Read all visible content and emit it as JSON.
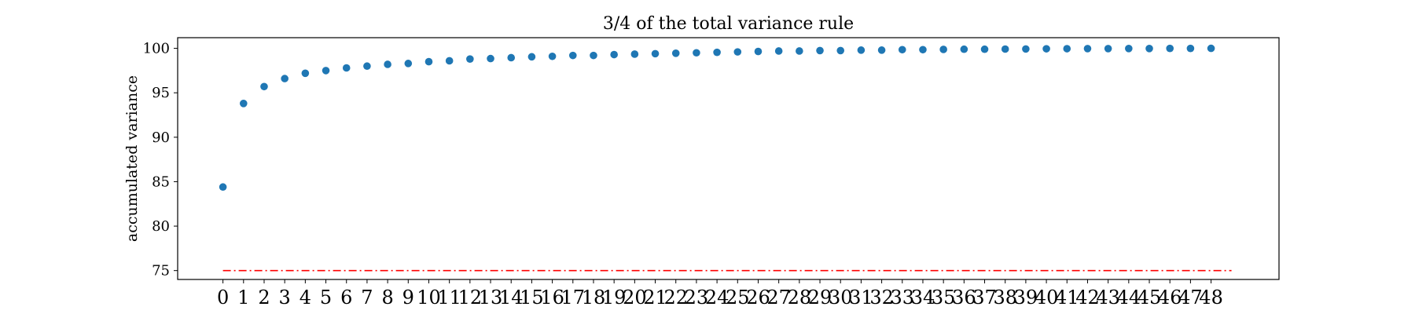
{
  "chart_data": {
    "type": "scatter",
    "title": "3/4 of the total variance rule",
    "xlabel": "",
    "ylabel": "accumulated variance",
    "x": [
      0,
      1,
      2,
      3,
      4,
      5,
      6,
      7,
      8,
      9,
      10,
      11,
      12,
      13,
      14,
      15,
      16,
      17,
      18,
      19,
      20,
      21,
      22,
      23,
      24,
      25,
      26,
      27,
      28,
      29,
      30,
      31,
      32,
      33,
      34,
      35,
      36,
      37,
      38,
      39,
      40,
      41,
      42,
      43,
      44,
      45,
      46,
      47,
      48
    ],
    "series": [
      {
        "values": [
          84.4,
          93.8,
          95.7,
          96.6,
          97.2,
          97.5,
          97.8,
          98.0,
          98.2,
          98.3,
          98.5,
          98.6,
          98.8,
          98.85,
          98.95,
          99.05,
          99.1,
          99.2,
          99.2,
          99.3,
          99.35,
          99.4,
          99.45,
          99.5,
          99.55,
          99.6,
          99.65,
          99.7,
          99.7,
          99.75,
          99.75,
          99.8,
          99.8,
          99.85,
          99.85,
          99.88,
          99.9,
          99.9,
          99.92,
          99.93,
          99.95,
          99.96,
          99.97,
          99.97,
          99.98,
          99.98,
          99.99,
          99.99,
          100.0
        ],
        "color": "#1f77b4"
      }
    ],
    "reference_line": {
      "y": 75,
      "x_range": [
        0,
        48
      ],
      "color": "#ff0000",
      "style": "dash-dot"
    },
    "ylim": [
      74,
      101.2
    ],
    "xlim": [
      -2.2,
      51.3
    ],
    "yticks": [
      75,
      80,
      85,
      90,
      95,
      100
    ],
    "xticks": [
      0,
      1,
      2,
      3,
      4,
      5,
      6,
      7,
      8,
      9,
      10,
      11,
      12,
      13,
      14,
      15,
      16,
      17,
      18,
      19,
      20,
      21,
      22,
      23,
      24,
      25,
      26,
      27,
      28,
      29,
      30,
      31,
      32,
      33,
      34,
      35,
      36,
      37,
      38,
      39,
      40,
      41,
      42,
      43,
      44,
      45,
      46,
      47,
      48
    ],
    "grid": false,
    "legend": "none"
  }
}
